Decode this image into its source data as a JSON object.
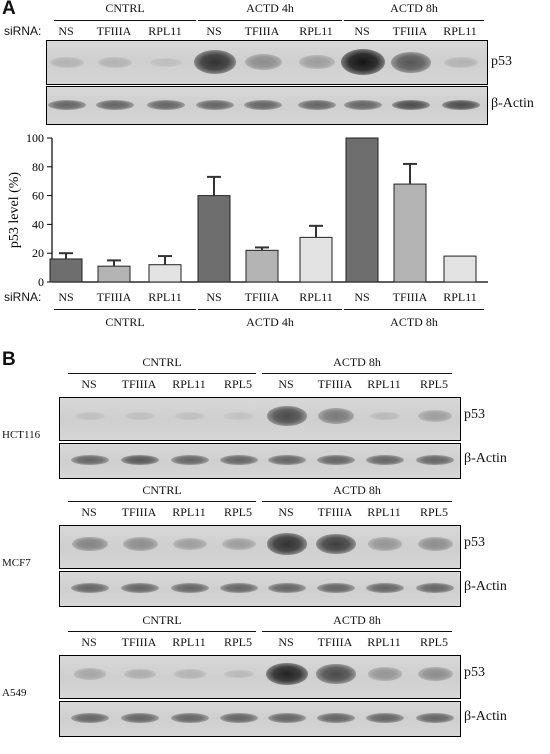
{
  "panel_a": {
    "letter": "A",
    "siRNA_label": "siRNA:",
    "groups": [
      "CNTRL",
      "ACTD 4h",
      "ACTD 8h"
    ],
    "lanes": [
      "NS",
      "TFIIIA",
      "RPL11",
      "NS",
      "TFIIIA",
      "RPL11",
      "NS",
      "TFIIIA",
      "RPL11"
    ],
    "proteins": [
      "p53",
      "β-Actin"
    ],
    "p53_band_intensity": [
      0.25,
      0.25,
      0.15,
      0.9,
      0.5,
      0.4,
      1.0,
      0.75,
      0.25
    ],
    "actin_band_intensity": [
      0.7,
      0.7,
      0.7,
      0.7,
      0.7,
      0.7,
      0.7,
      0.8,
      0.8
    ]
  },
  "chart_data": {
    "type": "bar",
    "ylabel": "p53 level (%)",
    "ylim": [
      0,
      100
    ],
    "yticks": [
      "0",
      "20",
      "40",
      "60",
      "80",
      "100"
    ],
    "categories": [
      "NS",
      "TFIIIA",
      "RPL11",
      "NS",
      "TFIIIA",
      "RPL11",
      "NS",
      "TFIIIA",
      "RPL11"
    ],
    "values": [
      16,
      11,
      12,
      60,
      22,
      31,
      100,
      68,
      18
    ],
    "errors": [
      4,
      4,
      6,
      13,
      2,
      8,
      0,
      14,
      0
    ],
    "bar_colors": [
      "#6e6e6e",
      "#b4b4b4",
      "#e3e3e3",
      "#6e6e6e",
      "#b4b4b4",
      "#e3e3e3",
      "#6e6e6e",
      "#b4b4b4",
      "#e3e3e3"
    ],
    "x_label_prefix": "siRNA:",
    "x_groups": [
      "CNTRL",
      "ACTD 4h",
      "ACTD 8h"
    ]
  },
  "panel_b": {
    "letter": "B",
    "groups": [
      "CNTRL",
      "ACTD 8h"
    ],
    "lanes": [
      "NS",
      "TFIIIA",
      "RPL11",
      "RPL5",
      "NS",
      "TFIIIA",
      "RPL11",
      "RPL5"
    ],
    "proteins": [
      "p53",
      "β-Actin"
    ],
    "blocks": [
      {
        "cell_line": "HCT116",
        "p53_band_intensity": [
          0.15,
          0.15,
          0.15,
          0.12,
          0.8,
          0.6,
          0.2,
          0.4
        ],
        "actin_band_intensity": [
          0.7,
          0.75,
          0.7,
          0.7,
          0.7,
          0.7,
          0.7,
          0.7
        ]
      },
      {
        "cell_line": "MCF7",
        "p53_band_intensity": [
          0.55,
          0.5,
          0.4,
          0.4,
          0.9,
          0.85,
          0.45,
          0.5
        ],
        "actin_band_intensity": [
          0.7,
          0.7,
          0.7,
          0.7,
          0.7,
          0.7,
          0.7,
          0.7
        ]
      },
      {
        "cell_line": "A549",
        "p53_band_intensity": [
          0.35,
          0.3,
          0.25,
          0.2,
          0.95,
          0.8,
          0.45,
          0.5
        ],
        "actin_band_intensity": [
          0.7,
          0.7,
          0.7,
          0.7,
          0.7,
          0.7,
          0.7,
          0.7
        ]
      }
    ]
  }
}
